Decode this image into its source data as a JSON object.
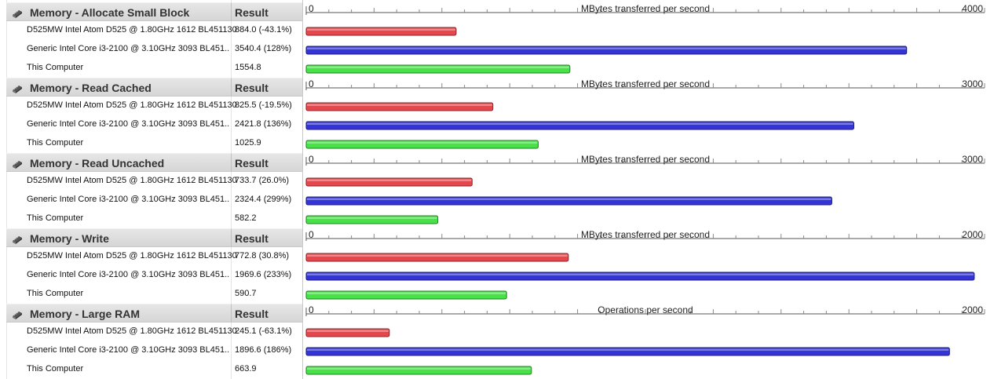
{
  "colors": {
    "series_1": "#e8464c",
    "series_2": "#3434d8",
    "series_3": "#46e246"
  },
  "header_icon": "memory-stick-icon",
  "result_header": "Result",
  "chart_data": [
    {
      "type": "bar",
      "title": "Memory - Allocate Small Block",
      "axis_label": "MBytes transferred per second",
      "xlim": [
        0,
        4000
      ],
      "tick_labels": [
        "0",
        "4000"
      ],
      "rows": [
        {
          "name": "D525MW Intel Atom D525 @ 1.80GHz 1612 BL451130",
          "result": "884.0 (-43.1%)",
          "value": 884.0
        },
        {
          "name": "Generic Intel Core i3-2100 @ 3.10GHz 3093 BL451..",
          "result": "3540.4 (128%)",
          "value": 3540.4
        },
        {
          "name": "This Computer",
          "result": "1554.8",
          "value": 1554.8
        }
      ]
    },
    {
      "type": "bar",
      "title": "Memory - Read Cached",
      "axis_label": "MBytes transferred per second",
      "xlim": [
        0,
        3000
      ],
      "tick_labels": [
        "0",
        "3000"
      ],
      "rows": [
        {
          "name": "D525MW Intel Atom D525 @ 1.80GHz 1612 BL451130",
          "result": "825.5 (-19.5%)",
          "value": 825.5
        },
        {
          "name": "Generic Intel Core i3-2100 @ 3.10GHz 3093 BL451..",
          "result": "2421.8 (136%)",
          "value": 2421.8
        },
        {
          "name": "This Computer",
          "result": "1025.9",
          "value": 1025.9
        }
      ]
    },
    {
      "type": "bar",
      "title": "Memory - Read Uncached",
      "axis_label": "MBytes transferred per second",
      "xlim": [
        0,
        3000
      ],
      "tick_labels": [
        "0",
        "3000"
      ],
      "rows": [
        {
          "name": "D525MW Intel Atom D525 @ 1.80GHz 1612 BL451130",
          "result": "733.7 (26.0%)",
          "value": 733.7
        },
        {
          "name": "Generic Intel Core i3-2100 @ 3.10GHz 3093 BL451..",
          "result": "2324.4 (299%)",
          "value": 2324.4
        },
        {
          "name": "This Computer",
          "result": "582.2",
          "value": 582.2
        }
      ]
    },
    {
      "type": "bar",
      "title": "Memory - Write",
      "axis_label": "MBytes transferred per second",
      "xlim": [
        0,
        2000
      ],
      "tick_labels": [
        "0",
        "2000"
      ],
      "rows": [
        {
          "name": "D525MW Intel Atom D525 @ 1.80GHz 1612 BL451130",
          "result": "772.8 (30.8%)",
          "value": 772.8
        },
        {
          "name": "Generic Intel Core i3-2100 @ 3.10GHz 3093 BL451..",
          "result": "1969.6 (233%)",
          "value": 1969.6
        },
        {
          "name": "This Computer",
          "result": "590.7",
          "value": 590.7
        }
      ]
    },
    {
      "type": "bar",
      "title": "Memory - Large RAM",
      "axis_label": "Operations per second",
      "xlim": [
        0,
        2000
      ],
      "tick_labels": [
        "0",
        "2000"
      ],
      "rows": [
        {
          "name": "D525MW Intel Atom D525 @ 1.80GHz 1612 BL451130",
          "result": "245.1 (-63.1%)",
          "value": 245.1
        },
        {
          "name": "Generic Intel Core i3-2100 @ 3.10GHz 3093 BL451..",
          "result": "1896.6 (186%)",
          "value": 1896.6
        },
        {
          "name": "This Computer",
          "result": "663.9",
          "value": 663.9
        }
      ]
    }
  ]
}
